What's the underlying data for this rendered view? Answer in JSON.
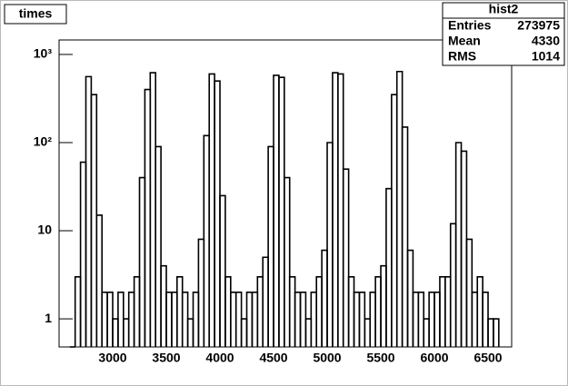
{
  "chart_data": {
    "type": "histogram",
    "title": "times",
    "bins": [
      2600,
      2650,
      2700,
      2750,
      2800,
      2850,
      2900,
      2950,
      3000,
      3050,
      3100,
      3150,
      3200,
      3250,
      3300,
      3350,
      3400,
      3450,
      3500,
      3550,
      3600,
      3650,
      3700,
      3750,
      3800,
      3850,
      3900,
      3950,
      4000,
      4050,
      4100,
      4150,
      4200,
      4250,
      4300,
      4350,
      4400,
      4450,
      4500,
      4550,
      4600,
      4650,
      4700,
      4750,
      4800,
      4850,
      4900,
      4950,
      5000,
      5050,
      5100,
      5150,
      5200,
      5250,
      5300,
      5350,
      5400,
      5450,
      5500,
      5550,
      5600,
      5650,
      5700,
      5750,
      5800,
      5850,
      5900,
      5950,
      6000,
      6050,
      6100,
      6150,
      6200,
      6250,
      6300,
      6350,
      6400,
      6450,
      6500,
      6550,
      6600
    ],
    "values": [
      0,
      3,
      60,
      560,
      350,
      15,
      2,
      2,
      1,
      2,
      1,
      2,
      3,
      40,
      400,
      620,
      90,
      4,
      2,
      2,
      3,
      2,
      1,
      2,
      8,
      120,
      600,
      500,
      25,
      3,
      2,
      2,
      1,
      2,
      2,
      3,
      5,
      90,
      580,
      550,
      40,
      3,
      2,
      2,
      1,
      2,
      3,
      6,
      100,
      620,
      600,
      50,
      3,
      2,
      2,
      1,
      2,
      3,
      4,
      30,
      350,
      640,
      150,
      6,
      2,
      2,
      1,
      2,
      2,
      3,
      3,
      12,
      100,
      80,
      8,
      2,
      3,
      2,
      1,
      1
    ],
    "color": "#000000",
    "xlim": [
      2500,
      6720
    ],
    "xticks": [
      3000,
      3500,
      4000,
      4500,
      5000,
      5500,
      6000,
      6500
    ],
    "ylim": [
      0.48,
      1460
    ],
    "log_y": true,
    "yticks": [
      1,
      10,
      {
        "value": 100,
        "label": "10²"
      },
      {
        "value": 1000,
        "label": "10³"
      }
    ],
    "stats": {
      "title": "hist2",
      "rows": [
        [
          "Entries",
          "273975"
        ],
        [
          "Mean",
          "4330"
        ],
        [
          "RMS",
          "1014"
        ]
      ]
    }
  }
}
